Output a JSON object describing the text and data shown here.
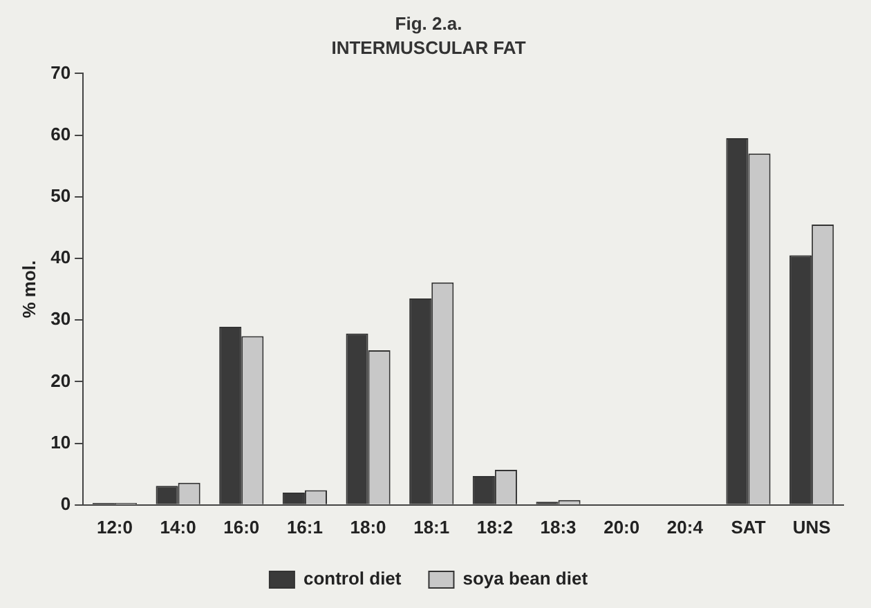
{
  "chart_data": {
    "type": "bar",
    "title": "Fig. 2.a.",
    "subtitle": "INTERMUSCULAR FAT",
    "ylabel": "% mol.",
    "categories": [
      "12:0",
      "14:0",
      "16:0",
      "16:1",
      "18:0",
      "18:1",
      "18:2",
      "18:3",
      "20:0",
      "20:4",
      "SAT",
      "UNS"
    ],
    "series": [
      {
        "name": "control diet",
        "color": "#3a3a3a",
        "values": [
          0.3,
          3.1,
          28.9,
          2.0,
          27.8,
          33.5,
          4.7,
          0.5,
          null,
          null,
          59.5,
          40.5
        ]
      },
      {
        "name": "soya bean diet",
        "color": "#c8c8c8",
        "values": [
          0.3,
          3.6,
          27.4,
          2.4,
          25.1,
          36.1,
          5.7,
          0.8,
          null,
          null,
          57,
          45.5
        ]
      }
    ],
    "ylim": [
      0,
      70
    ],
    "yticks": [
      0,
      10,
      20,
      30,
      40,
      50,
      60,
      70
    ],
    "grid": false,
    "legend": "bottom"
  }
}
